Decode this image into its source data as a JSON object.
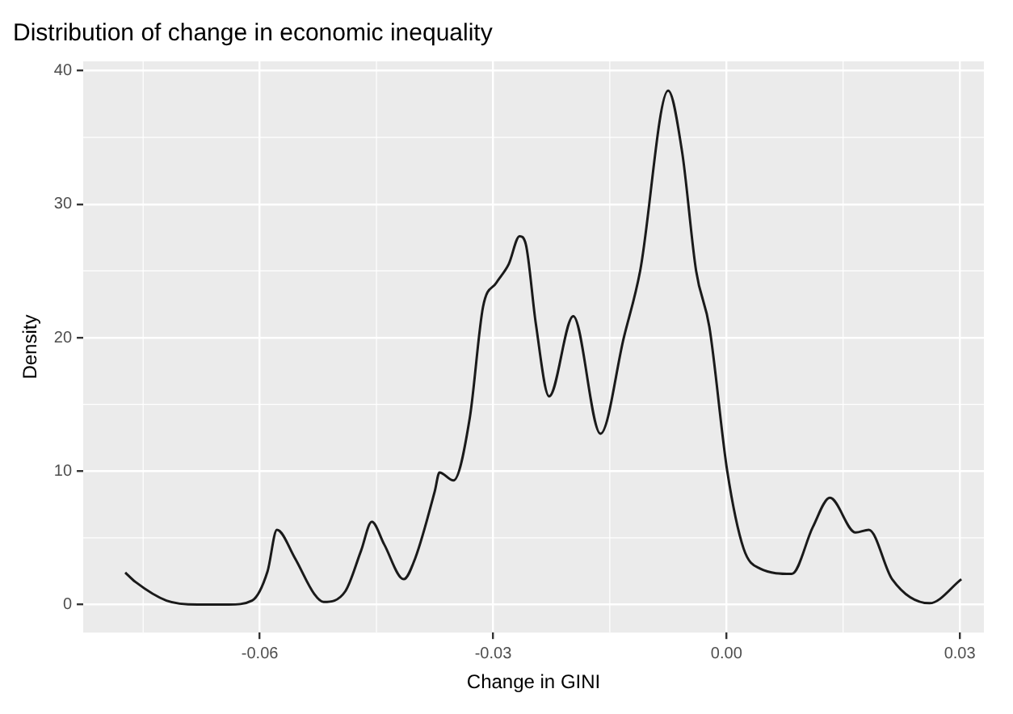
{
  "chart_data": {
    "type": "line",
    "title": "Distribution of change in economic inequality",
    "xlabel": "Change in GINI",
    "ylabel": "Density",
    "xlim": [
      -0.0827,
      0.0331
    ],
    "ylim": [
      -2.1,
      40.7
    ],
    "xticks": [
      -0.06,
      -0.03,
      {
        "value": 0,
        "label": "0.00"
      },
      0.03
    ],
    "yticks": [
      0,
      10,
      20,
      30,
      40
    ],
    "grid": true,
    "marker": "none",
    "line_style": "solid",
    "series": [
      {
        "color": "#1a1a1a",
        "x": [
          -0.0773,
          -0.076,
          -0.072,
          -0.068,
          -0.064,
          -0.061,
          -0.059,
          -0.0578,
          -0.0555,
          -0.053,
          -0.0518,
          -0.049,
          -0.047,
          -0.0456,
          -0.044,
          -0.0415,
          -0.04,
          -0.0375,
          -0.0369,
          -0.0351,
          -0.033,
          -0.0313,
          -0.0296,
          -0.028,
          -0.0266,
          -0.0258,
          -0.0245,
          -0.0228,
          -0.0197,
          -0.0162,
          -0.0132,
          -0.0111,
          -0.0075,
          -0.0057,
          -0.0039,
          -0.0022,
          0.0001,
          0.0022,
          0.0043,
          0.0084,
          0.0111,
          0.0133,
          0.0166,
          0.0183,
          0.0213,
          0.0261,
          0.0302
        ],
        "values": [
          2.4,
          1.7,
          0.3,
          0,
          0,
          0.3,
          2.5,
          5.6,
          3.5,
          0.8,
          0.2,
          1,
          4,
          6.2,
          4.5,
          1.9,
          3.5,
          8.5,
          9.9,
          9.3,
          14,
          22.3,
          24.1,
          25.5,
          27.6,
          27,
          21,
          15.6,
          21.6,
          12.8,
          20,
          25,
          38.5,
          33.9,
          25,
          20.8,
          10,
          4.2,
          2.7,
          2.3,
          5.8,
          8,
          5.4,
          5.6,
          1.9,
          0.1,
          1.9
        ]
      }
    ]
  }
}
